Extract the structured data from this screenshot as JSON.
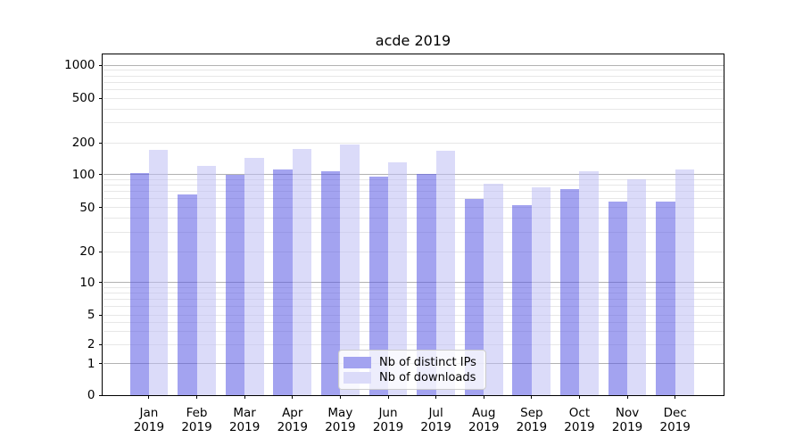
{
  "title": "acde 2019",
  "chart_data": {
    "type": "bar",
    "title": "acde 2019",
    "categories": [
      "Jan",
      "Feb",
      "Mar",
      "Apr",
      "May",
      "Jun",
      "Jul",
      "Aug",
      "Sep",
      "Oct",
      "Nov",
      "Dec"
    ],
    "year": "2019",
    "series": [
      {
        "name": "Nb of distinct IPs",
        "color": "#a3a3f0",
        "fill": "rgba(88,88,228,0.55)",
        "values": [
          103,
          66,
          99,
          111,
          107,
          95,
          101,
          60,
          53,
          74,
          57,
          57
        ]
      },
      {
        "name": "Nb of downloads",
        "color": "#dbdbf9",
        "fill": "rgba(190,190,244,0.55)",
        "values": [
          170,
          121,
          143,
          174,
          193,
          131,
          167,
          82,
          76,
          108,
          90,
          112
        ]
      }
    ],
    "yscale": "symlog",
    "y_ticks": [
      0,
      1,
      2,
      5,
      10,
      20,
      50,
      100,
      200,
      500,
      1000
    ],
    "ylim": [
      0,
      1250
    ],
    "xlabel": "",
    "ylabel": "",
    "grid": true,
    "legend_position": "lower center"
  },
  "colors": {
    "major_grid": "#b2b2b2",
    "minor_grid": "#e7e7e7",
    "spine": "#000000",
    "background": "#ffffff"
  }
}
